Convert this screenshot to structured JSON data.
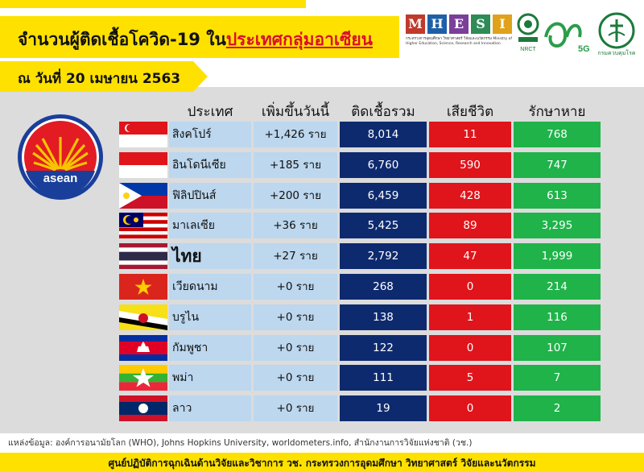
{
  "header": {
    "title_main": "จำนวนผู้ติดเชื้อโควิด-19 ใน",
    "title_highlight": "ประเทศกลุ่มอาเซียน",
    "date": "ณ วันที่ 20 เมษายน 2563"
  },
  "logos": {
    "mhesi_letters": [
      "M",
      "H",
      "E",
      "S",
      "I"
    ],
    "mhesi_colors": [
      "#c0392b",
      "#1f5fa8",
      "#7a3f98",
      "#2e8b57",
      "#e0a21b"
    ],
    "mhesi_caption": "กระทรวงการอุดมศึกษา วิทยาศาสตร์ วิจัยและนวัตกรรม Ministry of Higher Education, Science, Research and Innovation",
    "nrct_label": "NRCT",
    "logo_5g_text": "5G",
    "dmc_caption": "กรมควบคุมโรค"
  },
  "emblem": {
    "text": "asean"
  },
  "chart_data": {
    "type": "table",
    "columns": [
      "ประเทศ",
      "เพิ่มขึ้นวันนี้",
      "ติดเชื้อรวม",
      "เสียชีวิต",
      "รักษาหาย"
    ],
    "rows": [
      {
        "country": "สิงคโปร์",
        "flag": "singapore",
        "new": "+1,426 ราย",
        "total": "8,014",
        "deaths": "11",
        "recovered": "768"
      },
      {
        "country": "อินโดนีเซีย",
        "flag": "indonesia",
        "new": "+185 ราย",
        "total": "6,760",
        "deaths": "590",
        "recovered": "747"
      },
      {
        "country": "ฟิลิปปินส์",
        "flag": "philippines",
        "new": "+200 ราย",
        "total": "6,459",
        "deaths": "428",
        "recovered": "613"
      },
      {
        "country": "มาเลเซีย",
        "flag": "malaysia",
        "new": "+36 ราย",
        "total": "5,425",
        "deaths": "89",
        "recovered": "3,295"
      },
      {
        "country": "ไทย",
        "flag": "thailand",
        "new": "+27 ราย",
        "total": "2,792",
        "deaths": "47",
        "recovered": "1,999"
      },
      {
        "country": "เวียดนาม",
        "flag": "vietnam",
        "new": "+0 ราย",
        "total": "268",
        "deaths": "0",
        "recovered": "214"
      },
      {
        "country": "บรูไน",
        "flag": "brunei",
        "new": "+0 ราย",
        "total": "138",
        "deaths": "1",
        "recovered": "116"
      },
      {
        "country": "กัมพูชา",
        "flag": "cambodia",
        "new": "+0 ราย",
        "total": "122",
        "deaths": "0",
        "recovered": "107"
      },
      {
        "country": "พม่า",
        "flag": "myanmar",
        "new": "+0 ราย",
        "total": "111",
        "deaths": "5",
        "recovered": "7"
      },
      {
        "country": "ลาว",
        "flag": "laos",
        "new": "+0 ราย",
        "total": "19",
        "deaths": "0",
        "recovered": "2"
      }
    ],
    "column_colors": {
      "country": "#bcd7ee",
      "new": "#bcd7ee",
      "total": "#0e2a6f",
      "deaths": "#e0141b",
      "recovered": "#1fb34a"
    }
  },
  "source": "แหล่งข้อมูล: องค์การอนามัยโลก (WHO), Johns Hopkins University, worldometers.info, สำนักงานการวิจัยแห่งชาติ (วช.)",
  "footer": "ศูนย์ปฏิบัติการฉุกเฉินด้านวิจัยและวิชาการ   วช.   กระทรวงการอุดมศึกษา วิทยาศาสตร์ วิจัยและนวัตกรรม"
}
